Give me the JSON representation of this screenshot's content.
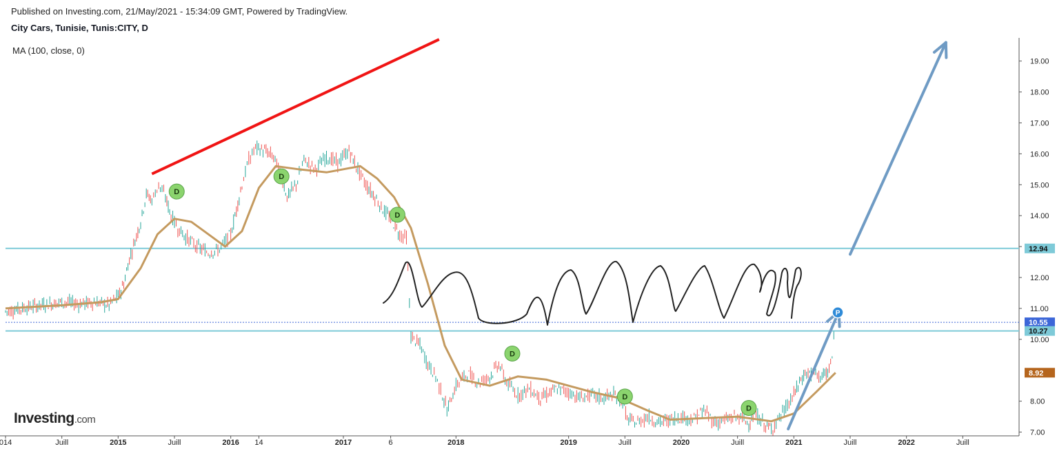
{
  "header": {
    "published": "Published on Investing.com, 21/May/2021 - 15:34:09 GMT, Powered by TradingView.",
    "symbol": "City Cars, Tunisie, Tunis:CITY, D",
    "indicator": "MA (100, close, 0)"
  },
  "logo": {
    "main": "Investing",
    "suffix": ".com"
  },
  "colors": {
    "up": "#26a69a",
    "down": "#ef5350",
    "ma": "#c49a5f",
    "trendline": "#f01414",
    "hline": "#7ecad8",
    "arrow": "#6f9bc4",
    "last_price": "#3c66d8",
    "ma_tag": "#b5651d",
    "dividend": "#8bd46e"
  },
  "chart_data": {
    "type": "line",
    "title": "City Cars, Tunisie, Tunis:CITY, D",
    "xlabel": "",
    "ylabel": "",
    "x_ticks": [
      {
        "label": "014",
        "t": 2014.0
      },
      {
        "label": "Juill",
        "t": 2014.5
      },
      {
        "label": "2015",
        "t": 2015.0
      },
      {
        "label": "Juill",
        "t": 2015.5
      },
      {
        "label": "2016",
        "t": 2016.0
      },
      {
        "label": "14",
        "t": 2016.25
      },
      {
        "label": "2017",
        "t": 2017.0
      },
      {
        "label": "6",
        "t": 2017.42
      },
      {
        "label": "2018",
        "t": 2018.0
      },
      {
        "label": "2019",
        "t": 2019.0
      },
      {
        "label": "Juill",
        "t": 2019.5
      },
      {
        "label": "2020",
        "t": 2020.0
      },
      {
        "label": "Juill",
        "t": 2020.5
      },
      {
        "label": "2021",
        "t": 2021.0
      },
      {
        "label": "Juill",
        "t": 2021.5
      },
      {
        "label": "2022",
        "t": 2022.0
      },
      {
        "label": "Juill",
        "t": 2022.5
      }
    ],
    "y_ticks": [
      7.0,
      8.0,
      10.0,
      11.0,
      12.0,
      13.0,
      14.0,
      15.0,
      16.0,
      17.0,
      18.0,
      19.0
    ],
    "y_tick_labels": [
      "7.00",
      "8.00",
      "10.00",
      "11.00",
      "12.00",
      "13.00",
      "14.00",
      "15.00",
      "16.00",
      "17.00",
      "18.00",
      "19.00"
    ],
    "ylim": [
      6.9,
      19.75
    ],
    "xlim": [
      2014.0,
      2023.0
    ],
    "price": [
      [
        2014.0,
        10.9
      ],
      [
        2014.15,
        11.0
      ],
      [
        2014.3,
        11.1
      ],
      [
        2014.5,
        11.2
      ],
      [
        2014.65,
        11.15
      ],
      [
        2014.8,
        11.2
      ],
      [
        2014.92,
        11.1
      ],
      [
        2015.0,
        11.4
      ],
      [
        2015.05,
        11.8
      ],
      [
        2015.1,
        12.6
      ],
      [
        2015.15,
        13.2
      ],
      [
        2015.2,
        13.8
      ],
      [
        2015.25,
        14.7
      ],
      [
        2015.3,
        14.5
      ],
      [
        2015.36,
        15.0
      ],
      [
        2015.42,
        14.6
      ],
      [
        2015.47,
        14.0
      ],
      [
        2015.53,
        13.6
      ],
      [
        2015.6,
        13.3
      ],
      [
        2015.7,
        13.0
      ],
      [
        2015.8,
        12.8
      ],
      [
        2015.9,
        12.9
      ],
      [
        2016.0,
        13.4
      ],
      [
        2016.05,
        14.2
      ],
      [
        2016.1,
        15.0
      ],
      [
        2016.16,
        15.8
      ],
      [
        2016.22,
        16.2
      ],
      [
        2016.3,
        16.1
      ],
      [
        2016.38,
        15.9
      ],
      [
        2016.45,
        15.3
      ],
      [
        2016.5,
        14.6
      ],
      [
        2016.58,
        15.0
      ],
      [
        2016.65,
        15.8
      ],
      [
        2016.75,
        15.5
      ],
      [
        2016.85,
        15.9
      ],
      [
        2016.95,
        15.7
      ],
      [
        2017.05,
        16.1
      ],
      [
        2017.1,
        15.7
      ],
      [
        2017.2,
        15.0
      ],
      [
        2017.28,
        14.6
      ],
      [
        2017.35,
        14.2
      ],
      [
        2017.42,
        13.9
      ],
      [
        2017.5,
        13.4
      ],
      [
        2017.56,
        13.3
      ],
      [
        2017.6,
        10.1
      ],
      [
        2017.68,
        9.8
      ],
      [
        2017.75,
        9.2
      ],
      [
        2017.82,
        8.8
      ],
      [
        2017.88,
        8.2
      ],
      [
        2017.92,
        7.7
      ],
      [
        2018.0,
        8.5
      ],
      [
        2018.1,
        8.9
      ],
      [
        2018.2,
        8.6
      ],
      [
        2018.3,
        8.8
      ],
      [
        2018.38,
        9.2
      ],
      [
        2018.45,
        8.6
      ],
      [
        2018.55,
        8.2
      ],
      [
        2018.65,
        8.4
      ],
      [
        2018.75,
        8.1
      ],
      [
        2018.9,
        8.4
      ],
      [
        2019.0,
        8.3
      ],
      [
        2019.1,
        8.1
      ],
      [
        2019.2,
        8.2
      ],
      [
        2019.3,
        8.1
      ],
      [
        2019.4,
        8.2
      ],
      [
        2019.48,
        8.0
      ],
      [
        2019.52,
        7.4
      ],
      [
        2019.6,
        7.3
      ],
      [
        2019.7,
        7.5
      ],
      [
        2019.8,
        7.3
      ],
      [
        2019.9,
        7.4
      ],
      [
        2020.0,
        7.5
      ],
      [
        2020.1,
        7.4
      ],
      [
        2020.2,
        7.7
      ],
      [
        2020.3,
        7.3
      ],
      [
        2020.4,
        7.4
      ],
      [
        2020.5,
        7.5
      ],
      [
        2020.6,
        7.3
      ],
      [
        2020.65,
        7.6
      ],
      [
        2020.75,
        7.2
      ],
      [
        2020.8,
        7.1
      ],
      [
        2020.9,
        7.6
      ],
      [
        2021.0,
        8.2
      ],
      [
        2021.05,
        8.6
      ],
      [
        2021.1,
        8.9
      ],
      [
        2021.18,
        8.9
      ],
      [
        2021.25,
        8.8
      ],
      [
        2021.3,
        8.9
      ],
      [
        2021.34,
        9.4
      ],
      [
        2021.37,
        10.55
      ]
    ],
    "ma_100": [
      [
        2014.0,
        11.0
      ],
      [
        2014.5,
        11.1
      ],
      [
        2014.85,
        11.2
      ],
      [
        2015.0,
        11.3
      ],
      [
        2015.2,
        12.3
      ],
      [
        2015.35,
        13.4
      ],
      [
        2015.5,
        13.9
      ],
      [
        2015.65,
        13.8
      ],
      [
        2015.8,
        13.4
      ],
      [
        2015.95,
        13.0
      ],
      [
        2016.1,
        13.5
      ],
      [
        2016.25,
        14.9
      ],
      [
        2016.4,
        15.6
      ],
      [
        2016.6,
        15.5
      ],
      [
        2016.85,
        15.4
      ],
      [
        2017.0,
        15.5
      ],
      [
        2017.15,
        15.6
      ],
      [
        2017.3,
        15.2
      ],
      [
        2017.45,
        14.6
      ],
      [
        2017.6,
        13.6
      ],
      [
        2017.75,
        11.8
      ],
      [
        2017.9,
        9.8
      ],
      [
        2018.05,
        8.7
      ],
      [
        2018.3,
        8.5
      ],
      [
        2018.55,
        8.8
      ],
      [
        2018.8,
        8.7
      ],
      [
        2019.0,
        8.5
      ],
      [
        2019.2,
        8.3
      ],
      [
        2019.45,
        8.1
      ],
      [
        2019.7,
        7.7
      ],
      [
        2019.9,
        7.4
      ],
      [
        2020.2,
        7.45
      ],
      [
        2020.5,
        7.5
      ],
      [
        2020.8,
        7.35
      ],
      [
        2021.0,
        7.6
      ],
      [
        2021.2,
        8.3
      ],
      [
        2021.37,
        8.92
      ]
    ],
    "dividends": [
      {
        "label": "D",
        "t": 2015.52,
        "v": 14.78
      },
      {
        "label": "D",
        "t": 2016.45,
        "v": 15.27
      },
      {
        "label": "D",
        "t": 2017.48,
        "v": 14.03
      },
      {
        "label": "D",
        "t": 2018.5,
        "v": 9.54
      },
      {
        "label": "D",
        "t": 2019.5,
        "v": 8.15
      },
      {
        "label": "D",
        "t": 2020.6,
        "v": 7.78
      }
    ],
    "price_marker": {
      "label": "P",
      "t": 2021.39,
      "v": 10.87
    },
    "horizontal_levels": [
      12.94,
      10.27
    ],
    "last_price": 10.55,
    "ma_last": 8.92,
    "price_tags": [
      {
        "label": "12.94",
        "v": 12.94,
        "kind": "level"
      },
      {
        "label": "10.55",
        "v": 10.55,
        "kind": "last"
      },
      {
        "label": "10.27",
        "v": 10.27,
        "kind": "level"
      },
      {
        "label": "8.92",
        "v": 8.92,
        "kind": "ma"
      }
    ],
    "trendline": [
      [
        2015.3,
        15.35
      ],
      [
        2017.85,
        19.7
      ]
    ],
    "arrows": [
      [
        [
          2020.95,
          7.1
        ],
        [
          2021.4,
          10.9
        ]
      ],
      [
        [
          2021.5,
          12.75
        ],
        [
          2022.35,
          19.6
        ]
      ]
    ],
    "grid": false,
    "legend": "none"
  }
}
